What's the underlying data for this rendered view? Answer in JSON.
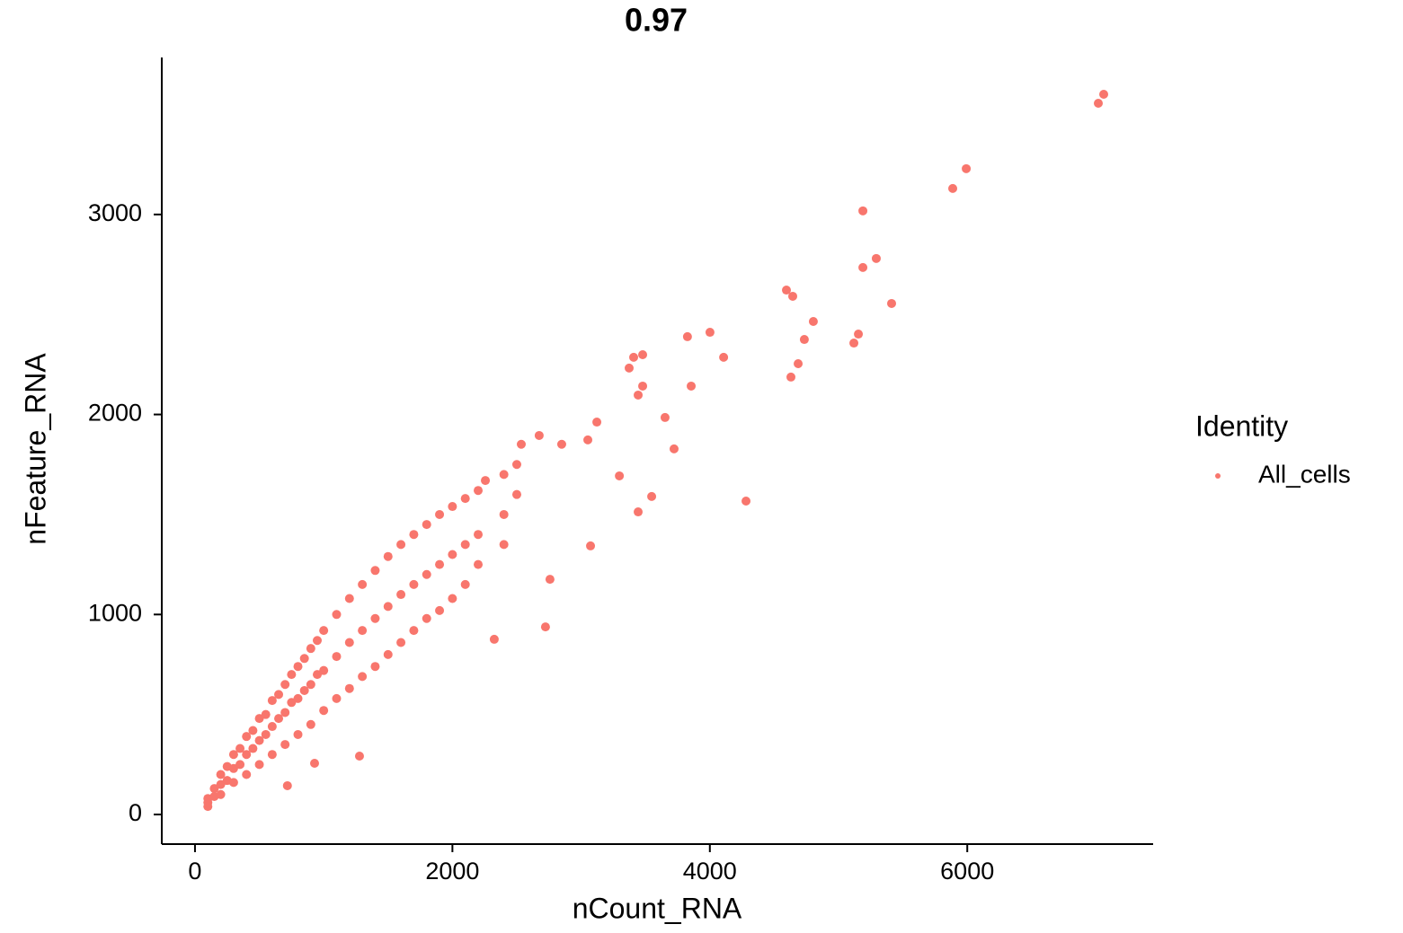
{
  "chart_data": {
    "type": "scatter",
    "title": "0.97",
    "x_label": "nCount_RNA",
    "y_label": "nFeature_RNA",
    "legend_title": "Identity",
    "legend": "right",
    "grid": false,
    "series": [
      {
        "name": "All_cells",
        "color": "#F8766D",
        "x": [
          100,
          100,
          100,
          150,
          150,
          200,
          200,
          200,
          250,
          250,
          300,
          300,
          300,
          350,
          350,
          400,
          400,
          400,
          450,
          450,
          500,
          500,
          500,
          550,
          550,
          600,
          600,
          600,
          650,
          650,
          700,
          700,
          700,
          750,
          750,
          800,
          800,
          800,
          850,
          850,
          900,
          900,
          900,
          950,
          950,
          1000,
          1000,
          1000,
          1100,
          1100,
          1100,
          1200,
          1200,
          1200,
          1300,
          1300,
          1300,
          1400,
          1400,
          1400,
          1500,
          1500,
          1500,
          1600,
          1600,
          1600,
          1700,
          1700,
          1700,
          1800,
          1800,
          1800,
          1900,
          1900,
          1900,
          2000,
          2000,
          2000,
          2100,
          2100,
          2100,
          2200,
          2200,
          2200,
          2400,
          2400,
          2400,
          2500,
          2500,
          7060,
          7018,
          5992,
          5887,
          5189,
          5293,
          5189,
          5412,
          4595,
          4644,
          4804,
          4734,
          5154,
          5119,
          4686,
          4630,
          4281,
          4001,
          3826,
          4107,
          3408,
          3478,
          3652,
          3722,
          3443,
          3548,
          3073,
          2723,
          2325,
          2758,
          3443,
          3478,
          3855,
          3122,
          3297,
          1278,
          718,
          929,
          3052,
          2849,
          2674,
          2535,
          2256,
          3373
        ],
        "values": [
          80,
          60,
          40,
          130,
          90,
          200,
          150,
          100,
          240,
          170,
          300,
          230,
          160,
          330,
          250,
          390,
          300,
          200,
          420,
          330,
          480,
          370,
          250,
          500,
          400,
          570,
          440,
          300,
          600,
          480,
          650,
          510,
          350,
          700,
          560,
          740,
          580,
          400,
          780,
          620,
          830,
          650,
          450,
          870,
          700,
          920,
          720,
          520,
          1000,
          790,
          580,
          1080,
          860,
          630,
          1150,
          920,
          690,
          1220,
          980,
          740,
          1290,
          1040,
          800,
          1350,
          1100,
          860,
          1400,
          1150,
          920,
          1450,
          1200,
          980,
          1500,
          1250,
          1020,
          1540,
          1300,
          1080,
          1580,
          1350,
          1150,
          1620,
          1400,
          1250,
          1700,
          1500,
          1350,
          1750,
          1600,
          3601,
          3556,
          3229,
          3130,
          3018,
          2780,
          2735,
          2555,
          2622,
          2591,
          2465,
          2375,
          2402,
          2357,
          2254,
          2187,
          1567,
          2411,
          2389,
          2286,
          2286,
          2299,
          1985,
          1828,
          1513,
          1590,
          1343,
          938,
          876,
          1176,
          2097,
          2142,
          2142,
          1962,
          1693,
          292,
          144,
          256,
          1873,
          1851,
          1895,
          1851,
          1670,
          2232
        ]
      }
    ],
    "xlim": [
      -258,
      7444
    ],
    "ylim": [
      -148,
      3785
    ],
    "xticks": [
      0,
      2000,
      4000,
      6000
    ],
    "yticks": [
      0,
      1000,
      2000,
      3000
    ]
  }
}
